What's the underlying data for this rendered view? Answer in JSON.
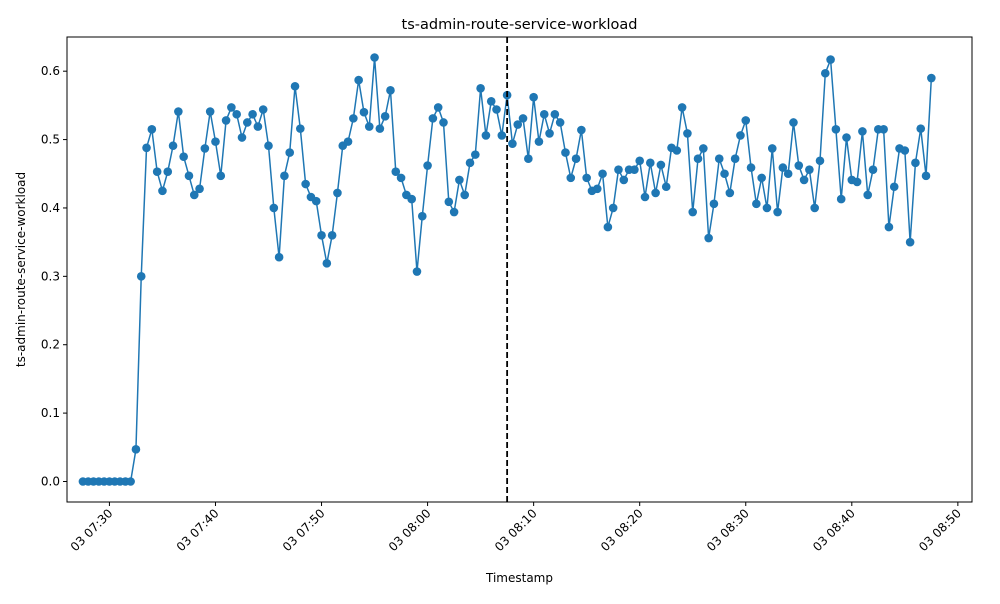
{
  "chart_data": {
    "type": "line",
    "title": "ts-admin-route-service-workload",
    "xlabel": "Timestamp",
    "ylabel": "ts-admin-route-service-workload",
    "x_start": "2000-01-03 07:27:30",
    "x_step_seconds": 30,
    "x_range": [
      "2000-01-03 07:26:00",
      "2000-01-03 08:51:20"
    ],
    "x_ticks": [
      {
        "time": "2000-01-03 07:30:00",
        "label": "03 07:30"
      },
      {
        "time": "2000-01-03 07:40:00",
        "label": "03 07:40"
      },
      {
        "time": "2000-01-03 07:50:00",
        "label": "03 07:50"
      },
      {
        "time": "2000-01-03 08:00:00",
        "label": "03 08:00"
      },
      {
        "time": "2000-01-03 08:10:00",
        "label": "03 08:10"
      },
      {
        "time": "2000-01-03 08:20:00",
        "label": "03 08:20"
      },
      {
        "time": "2000-01-03 08:30:00",
        "label": "03 08:30"
      },
      {
        "time": "2000-01-03 08:40:00",
        "label": "03 08:40"
      },
      {
        "time": "2000-01-03 08:50:00",
        "label": "03 08:50"
      }
    ],
    "ylim": [
      -0.03,
      0.65
    ],
    "y_ticks": [
      0.0,
      0.1,
      0.2,
      0.3,
      0.4,
      0.5,
      0.6
    ],
    "y_tick_labels": [
      "0.0",
      "0.1",
      "0.2",
      "0.3",
      "0.4",
      "0.5",
      "0.6"
    ],
    "vertical_line": {
      "time": "2000-01-03 08:07:30",
      "style": "dashed",
      "color": "#000000"
    },
    "series_color": "#1f77b4",
    "grid": false,
    "values": [
      0.0,
      0.0,
      0.0,
      0.0,
      0.0,
      0.0,
      0.0,
      0.0,
      0.0,
      0.0,
      0.047,
      0.3,
      0.488,
      0.515,
      0.453,
      0.425,
      0.453,
      0.491,
      0.541,
      0.475,
      0.447,
      0.419,
      0.428,
      0.487,
      0.541,
      0.497,
      0.447,
      0.528,
      0.547,
      0.537,
      0.503,
      0.525,
      0.537,
      0.519,
      0.544,
      0.491,
      0.4,
      0.328,
      0.447,
      0.481,
      0.578,
      0.516,
      0.435,
      0.416,
      0.41,
      0.36,
      0.319,
      0.36,
      0.422,
      0.491,
      0.497,
      0.531,
      0.587,
      0.54,
      0.519,
      0.62,
      0.516,
      0.534,
      0.572,
      0.453,
      0.444,
      0.419,
      0.413,
      0.307,
      0.388,
      0.462,
      0.531,
      0.547,
      0.525,
      0.409,
      0.394,
      0.441,
      0.419,
      0.466,
      0.478,
      0.575,
      0.506,
      0.556,
      0.544,
      0.506,
      0.565,
      0.494,
      0.522,
      0.531,
      0.472,
      0.562,
      0.497,
      0.537,
      0.509,
      0.537,
      0.525,
      0.481,
      0.444,
      0.472,
      0.514,
      0.444,
      0.425,
      0.428,
      0.45,
      0.372,
      0.4,
      0.456,
      0.441,
      0.456,
      0.456,
      0.469,
      0.416,
      0.466,
      0.422,
      0.463,
      0.431,
      0.488,
      0.484,
      0.547,
      0.509,
      0.394,
      0.472,
      0.487,
      0.356,
      0.406,
      0.472,
      0.45,
      0.422,
      0.472,
      0.506,
      0.528,
      0.459,
      0.406,
      0.444,
      0.4,
      0.487,
      0.394,
      0.459,
      0.45,
      0.525,
      0.462,
      0.441,
      0.456,
      0.4,
      0.469,
      0.597,
      0.617,
      0.515,
      0.413,
      0.503,
      0.441,
      0.438,
      0.512,
      0.419,
      0.456,
      0.515,
      0.515,
      0.372,
      0.431,
      0.487,
      0.484,
      0.35,
      0.466,
      0.516,
      0.447,
      0.59
    ]
  }
}
